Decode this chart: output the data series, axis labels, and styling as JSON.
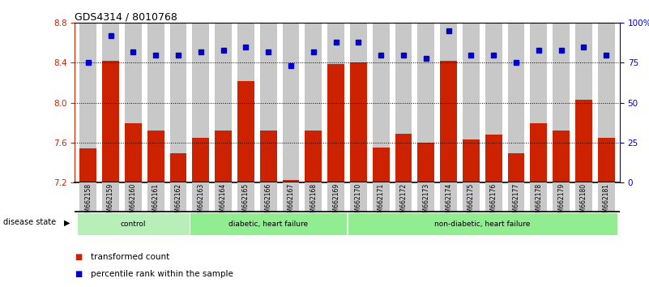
{
  "title": "GDS4314 / 8010768",
  "samples": [
    "GSM662158",
    "GSM662159",
    "GSM662160",
    "GSM662161",
    "GSM662162",
    "GSM662163",
    "GSM662164",
    "GSM662165",
    "GSM662166",
    "GSM662167",
    "GSM662168",
    "GSM662169",
    "GSM662170",
    "GSM662171",
    "GSM662172",
    "GSM662173",
    "GSM662174",
    "GSM662175",
    "GSM662176",
    "GSM662177",
    "GSM662178",
    "GSM662179",
    "GSM662180",
    "GSM662181"
  ],
  "bar_values": [
    7.54,
    8.42,
    7.79,
    7.72,
    7.49,
    7.65,
    7.72,
    8.22,
    7.72,
    7.22,
    7.72,
    8.39,
    8.4,
    7.55,
    7.69,
    7.6,
    8.42,
    7.63,
    7.68,
    7.49,
    7.79,
    7.72,
    8.03,
    7.65
  ],
  "percentile_values": [
    75,
    92,
    82,
    80,
    80,
    82,
    83,
    85,
    82,
    73,
    82,
    88,
    88,
    80,
    80,
    78,
    95,
    80,
    80,
    75,
    83,
    83,
    85,
    80
  ],
  "group_starts": [
    0,
    5,
    12
  ],
  "group_ends": [
    5,
    12,
    24
  ],
  "group_labels": [
    "control",
    "diabetic, heart failure",
    "non-diabetic, heart failure"
  ],
  "group_colors": [
    "#b8eeb8",
    "#90ee90",
    "#90ee90"
  ],
  "ylim_left": [
    7.2,
    8.8
  ],
  "ylim_right": [
    0,
    100
  ],
  "yticks_left": [
    7.2,
    7.6,
    8.0,
    8.4,
    8.8
  ],
  "yticks_right": [
    0,
    25,
    50,
    75,
    100
  ],
  "ytick_labels_right": [
    "0",
    "25",
    "50",
    "75",
    "100%"
  ],
  "bar_color": "#cc2200",
  "percentile_color": "#0000cc",
  "bar_bg_color": "#c8c8c8",
  "legend_bar_label": "transformed count",
  "legend_percentile_label": "percentile rank within the sample",
  "disease_state_label": "disease state"
}
